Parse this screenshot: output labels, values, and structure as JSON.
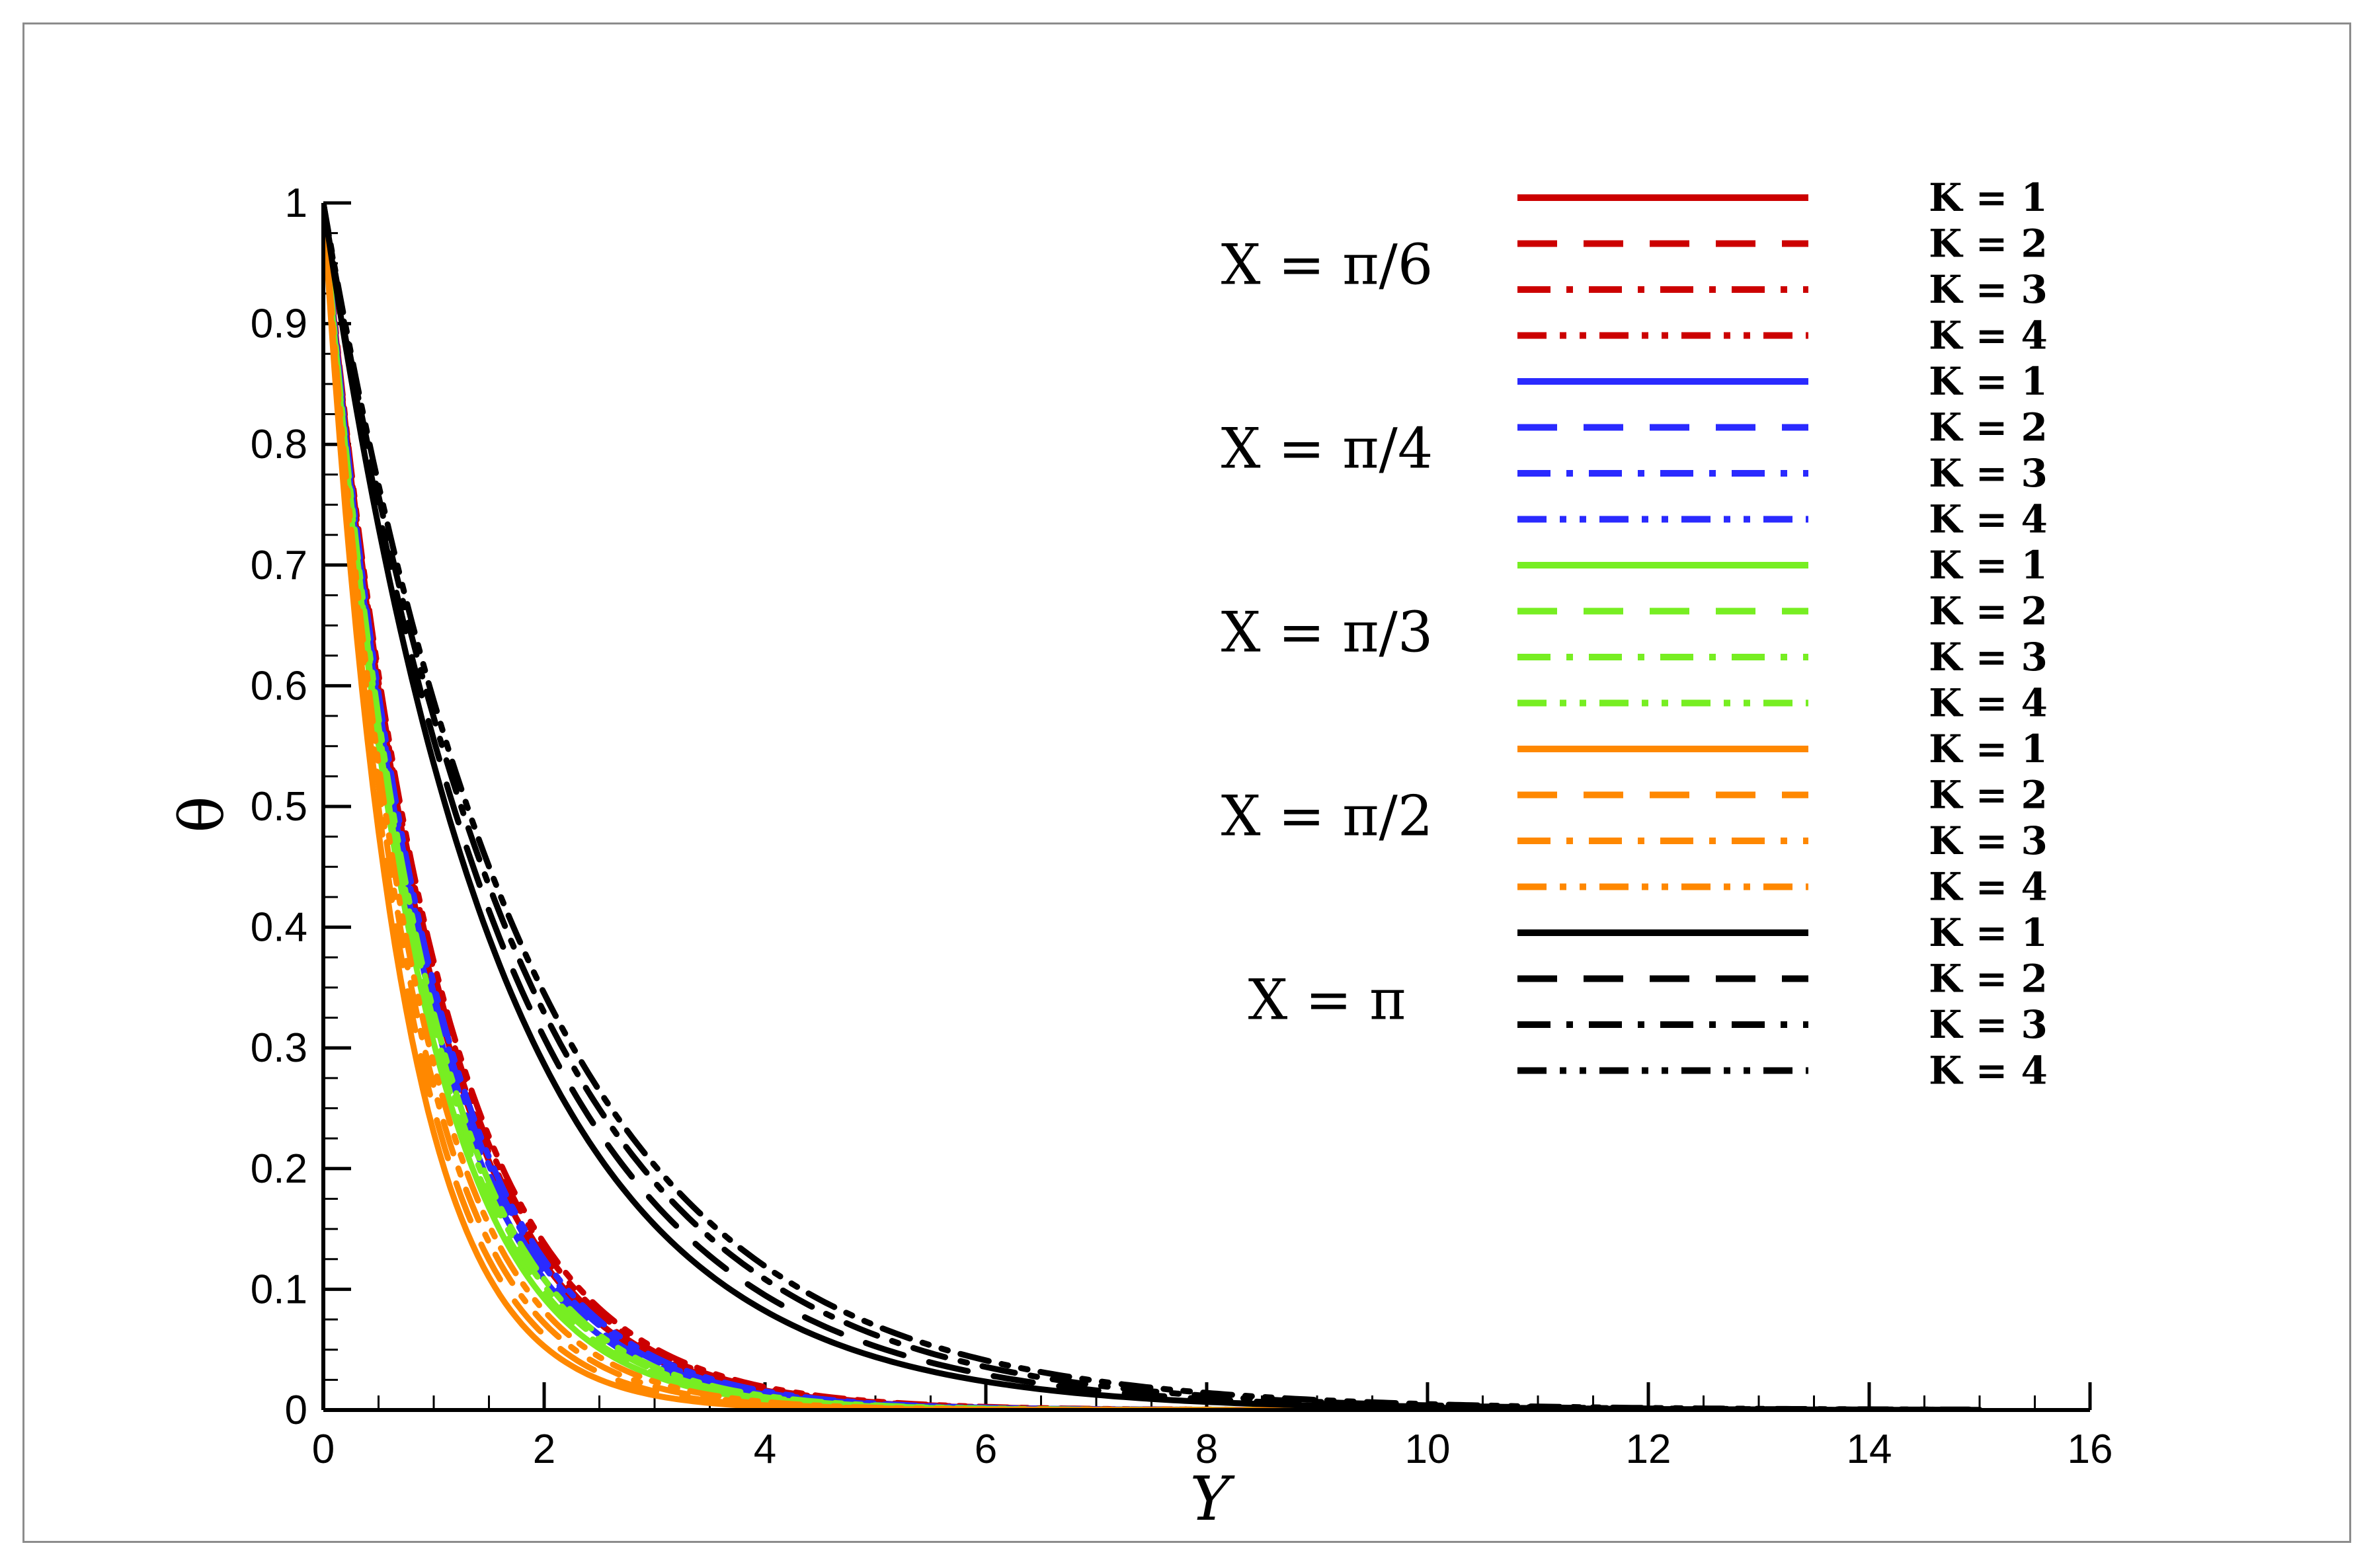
{
  "chart_data": {
    "type": "line",
    "xlabel": "Y",
    "ylabel": "θ",
    "xlim": [
      0,
      16
    ],
    "ylim": [
      0,
      1
    ],
    "x_ticks": [
      "0",
      "2",
      "4",
      "6",
      "8",
      "10",
      "12",
      "14",
      "16"
    ],
    "y_ticks": [
      "0",
      "0.1",
      "0.2",
      "0.3",
      "0.4",
      "0.5",
      "0.6",
      "0.7",
      "0.8",
      "0.9",
      "1"
    ],
    "legend_position": "top-right",
    "groups": [
      {
        "label": "X = π/6",
        "color": "#cc0000",
        "series": [
          {
            "name": "K = 1",
            "style": "solid",
            "decay": 0.95
          },
          {
            "name": "K = 2",
            "style": "dash",
            "decay": 0.97
          },
          {
            "name": "K = 3",
            "style": "dashdot",
            "decay": 0.99
          },
          {
            "name": "K = 4",
            "style": "dashdotdot",
            "decay": 1.01
          }
        ]
      },
      {
        "label": "X = π/4",
        "color": "#2a2aff",
        "series": [
          {
            "name": "K = 1",
            "style": "solid",
            "decay": 0.9
          },
          {
            "name": "K = 2",
            "style": "dash",
            "decay": 0.92
          },
          {
            "name": "K = 3",
            "style": "dashdot",
            "decay": 0.94
          },
          {
            "name": "K = 4",
            "style": "dashdotdot",
            "decay": 0.96
          }
        ]
      },
      {
        "label": "X = π/3",
        "color": "#77ee22",
        "series": [
          {
            "name": "K = 1",
            "style": "solid",
            "decay": 0.84
          },
          {
            "name": "K = 2",
            "style": "dash",
            "decay": 0.86
          },
          {
            "name": "K = 3",
            "style": "dashdot",
            "decay": 0.88
          },
          {
            "name": "K = 4",
            "style": "dashdotdot",
            "decay": 0.9
          }
        ]
      },
      {
        "label": "X = π/2",
        "color": "#ff8800",
        "series": [
          {
            "name": "K = 1",
            "style": "solid",
            "decay": 0.68
          },
          {
            "name": "K = 2",
            "style": "dash",
            "decay": 0.72
          },
          {
            "name": "K = 3",
            "style": "dashdot",
            "decay": 0.76
          },
          {
            "name": "K = 4",
            "style": "dashdotdot",
            "decay": 0.8
          }
        ]
      },
      {
        "label": "X = π",
        "color": "#000000",
        "series": [
          {
            "name": "K = 1",
            "style": "solid",
            "decay": 1.6
          },
          {
            "name": "K = 2",
            "style": "dash",
            "decay": 1.7
          },
          {
            "name": "K = 3",
            "style": "dashdot",
            "decay": 1.8
          },
          {
            "name": "K = 4",
            "style": "dashdotdot",
            "decay": 1.88
          }
        ]
      }
    ]
  }
}
